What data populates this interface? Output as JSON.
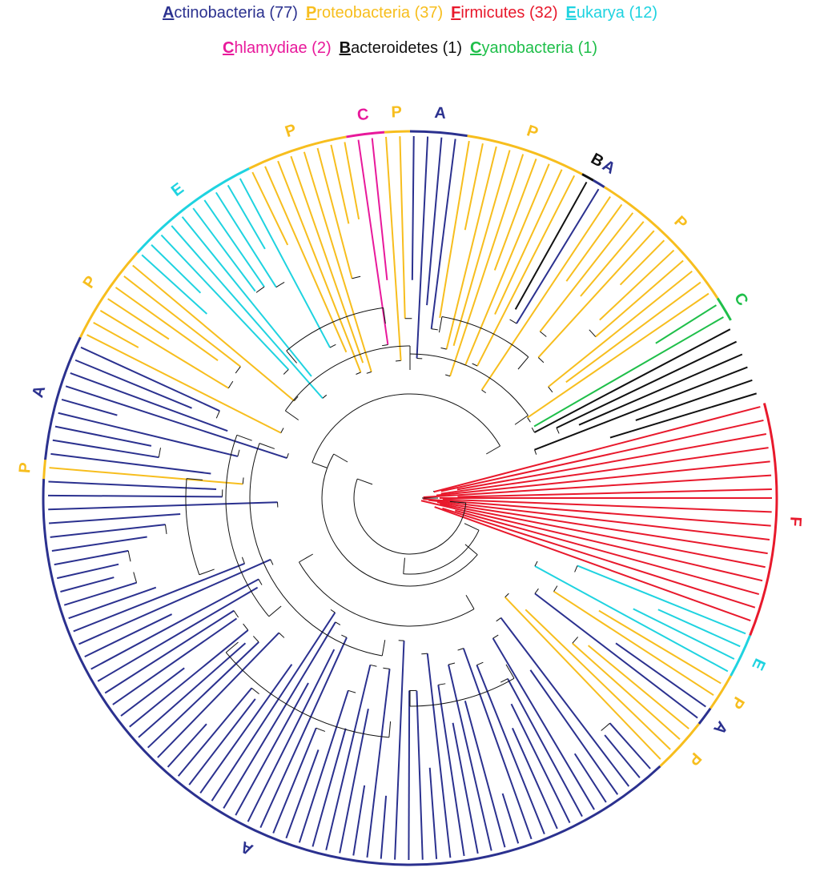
{
  "legend": {
    "row1": [
      {
        "initial": "A",
        "rest": "ctinobacteria (77)",
        "color": "#2b318f"
      },
      {
        "initial": "P",
        "rest": "roteobacteria (37)",
        "color": "#f7be1e"
      },
      {
        "initial": "F",
        "rest": "irmicutes (32)",
        "color": "#e8192c"
      },
      {
        "initial": "E",
        "rest": "ukarya (12)",
        "color": "#1fd3e0"
      }
    ],
    "row2": [
      {
        "initial": "C",
        "rest": "hlamydiae (2)",
        "color": "#e8199b"
      },
      {
        "initial": "B",
        "rest": "acteroidetes (1)",
        "color": "#111111"
      },
      {
        "initial": "C",
        "rest": "yanobacteria (1)",
        "color": "#1fbf4a"
      }
    ]
  },
  "arcs": [
    {
      "letter": "F",
      "color": "#e8192c",
      "from": 345,
      "to": 22
    },
    {
      "letter": "E",
      "color": "#1fd3e0",
      "from": 22,
      "to": 29
    },
    {
      "letter": "P",
      "color": "#f7be1e",
      "from": 29,
      "to": 35
    },
    {
      "letter": "A",
      "color": "#2b318f",
      "from": 35,
      "to": 38
    },
    {
      "letter": "P",
      "color": "#f7be1e",
      "from": 38,
      "to": 47
    },
    {
      "letter": "A",
      "color": "#2b318f",
      "from": 47,
      "to": 183
    },
    {
      "letter": "P",
      "color": "#f7be1e",
      "from": 183,
      "to": 186
    },
    {
      "letter": "A",
      "color": "#2b318f",
      "from": 186,
      "to": 206
    },
    {
      "letter": "P",
      "color": "#f7be1e",
      "from": 206,
      "to": 222
    },
    {
      "letter": "E",
      "color": "#1fd3e0",
      "from": 222,
      "to": 244
    },
    {
      "letter": "P",
      "color": "#f7be1e",
      "from": 244,
      "to": 260
    },
    {
      "letter": "C",
      "color": "#e8199b",
      "from": 260,
      "to": 266
    },
    {
      "letter": "P",
      "color": "#f7be1e",
      "from": 266,
      "to": 270
    },
    {
      "letter": "A",
      "color": "#2b318f",
      "from": 270,
      "to": 279
    },
    {
      "letter": "P",
      "color": "#f7be1e",
      "from": 279,
      "to": 298
    },
    {
      "letter": "B",
      "color": "#111111",
      "from": 298,
      "to": 300
    },
    {
      "letter": "A",
      "color": "#2b318f",
      "from": 300,
      "to": 302
    },
    {
      "letter": "P",
      "color": "#f7be1e",
      "from": 302,
      "to": 327
    },
    {
      "letter": "C",
      "color": "#1fbf4a",
      "from": 327,
      "to": 331
    }
  ]
}
